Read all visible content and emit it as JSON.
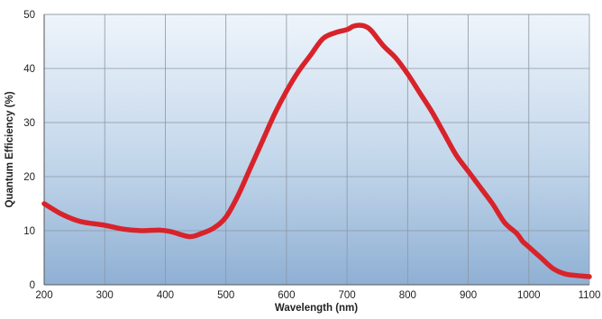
{
  "chart_data": {
    "type": "line",
    "title": "",
    "xlabel": "Wavelength (nm)",
    "ylabel": "Quantum Efficiency (%)",
    "xlim": [
      200,
      1100
    ],
    "ylim": [
      0,
      50
    ],
    "xticks": [
      200,
      300,
      400,
      500,
      600,
      700,
      800,
      900,
      1000,
      1100
    ],
    "yticks": [
      0,
      10,
      20,
      30,
      40,
      50
    ],
    "grid": true,
    "legend": "none",
    "series": [
      {
        "color": "#d8232a",
        "x": [
          200,
          230,
          260,
          300,
          330,
          360,
          390,
          410,
          440,
          460,
          480,
          500,
          520,
          540,
          560,
          580,
          600,
          620,
          640,
          660,
          680,
          700,
          710,
          720,
          730,
          740,
          760,
          780,
          800,
          820,
          840,
          860,
          880,
          900,
          920,
          940,
          960,
          980,
          990,
          1000,
          1020,
          1040,
          1060,
          1080,
          1100
        ],
        "y": [
          15,
          13,
          11.7,
          11,
          10.3,
          10,
          10.1,
          9.8,
          8.9,
          9.5,
          10.5,
          12.5,
          16.5,
          21.5,
          26.5,
          31.5,
          35.8,
          39.5,
          42.5,
          45.5,
          46.6,
          47.2,
          47.8,
          48,
          47.8,
          47,
          44.2,
          42,
          39,
          35.5,
          32,
          28,
          24,
          21,
          18,
          15,
          11.5,
          9.5,
          8,
          7,
          5,
          3,
          2,
          1.7,
          1.5
        ]
      }
    ]
  }
}
